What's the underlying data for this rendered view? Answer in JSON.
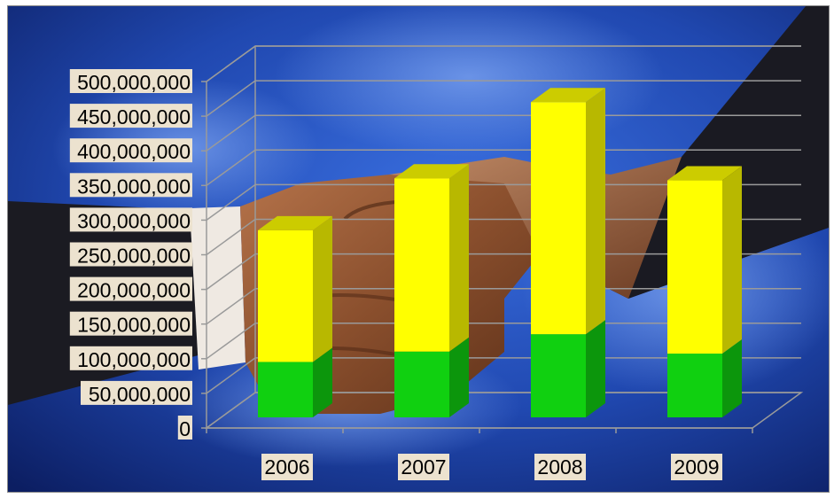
{
  "chart_data": {
    "type": "bar",
    "stacked": true,
    "three_d": true,
    "categories": [
      "2006",
      "2007",
      "2008",
      "2009"
    ],
    "series": [
      {
        "values": [
          80000000,
          95000000,
          120000000,
          92000000
        ],
        "color": "#10d010"
      },
      {
        "values": [
          190000000,
          250000000,
          335000000,
          250000000
        ],
        "color": "#ffff00"
      }
    ],
    "ylim": [
      0,
      500000000
    ],
    "y_ticks": [
      "0",
      "50,000,000",
      "100,000,000",
      "150,000,000",
      "200,000,000",
      "250,000,000",
      "300,000,000",
      "350,000,000",
      "400,000,000",
      "450,000,000",
      "500,000,000"
    ],
    "grid": true,
    "legend": "none",
    "background": "photo of a handshake over a blue sky"
  }
}
